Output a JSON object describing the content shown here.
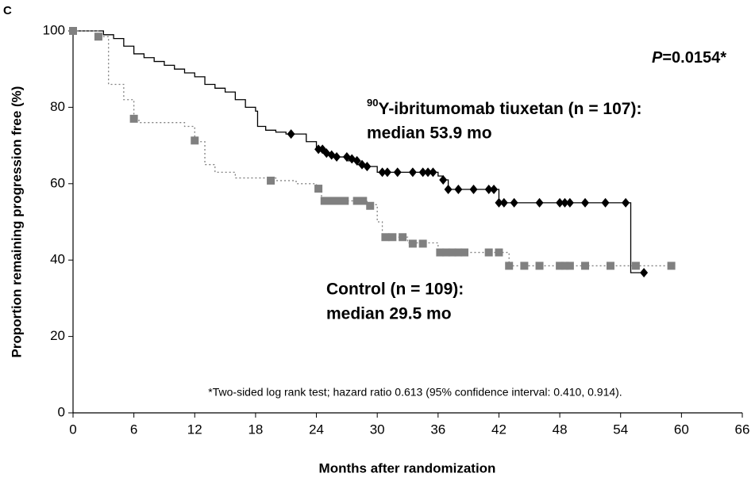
{
  "chart_data": {
    "type": "km",
    "panel": "C",
    "xlabel": "Months after randomization",
    "ylabel": "Proportion remaining progression free (%)",
    "xlim": [
      0,
      66
    ],
    "xticks": [
      0,
      6,
      12,
      18,
      24,
      30,
      36,
      42,
      48,
      54,
      60,
      66
    ],
    "ylim": [
      0,
      100
    ],
    "yticks": [
      0,
      20,
      40,
      60,
      80,
      100
    ],
    "pvalue": {
      "italic": "P",
      "text": "=0.0154*"
    },
    "footnote": "*Two-sided log rank test; hazard ratio 0.613 (95% confidence interval: 0.410, 0.914).",
    "series": [
      {
        "label": {
          "sup": "90",
          "line1": "Y-ibritumomab tiuxetan (n = 107):",
          "line2": "median 53.9 mo"
        },
        "color": "#000000",
        "marker": "diamond",
        "dash": "",
        "x": [
          0,
          3,
          4,
          5,
          6,
          7,
          8,
          9,
          10,
          11,
          12,
          13,
          14,
          15,
          16,
          17,
          18,
          18.2,
          19,
          20,
          21,
          23,
          24,
          25,
          25.5,
          27,
          28,
          29,
          30,
          36,
          36.5,
          37,
          42,
          55,
          56
        ],
        "values": [
          100,
          99,
          98,
          96,
          94,
          93,
          92,
          91,
          90,
          89,
          88,
          86,
          85,
          84,
          82,
          80,
          79,
          75,
          74,
          73.5,
          73,
          71,
          69,
          68,
          67,
          66,
          65,
          64.5,
          63,
          62,
          61,
          58.5,
          55,
          36.7,
          36.7
        ],
        "censor_x": [
          21.5,
          24.2,
          24.6,
          25,
          25.5,
          26,
          27,
          27.5,
          28,
          28.5,
          29,
          30.5,
          31,
          32,
          33.5,
          34.5,
          35,
          35.5,
          36.5,
          37,
          38,
          39.5,
          41,
          41.5,
          42,
          42.5,
          43.5,
          46,
          48,
          48.5,
          49,
          50.5,
          52.5,
          54.5,
          56.3
        ],
        "censor_values": [
          73,
          69,
          69,
          68,
          67.5,
          67,
          67,
          66.5,
          66,
          65,
          64.5,
          63,
          63,
          63,
          63,
          63,
          63,
          63,
          61,
          58.5,
          58.5,
          58.5,
          58.5,
          58.5,
          55,
          55,
          55,
          55,
          55,
          55,
          55,
          55,
          55,
          55,
          36.7
        ]
      },
      {
        "label": {
          "line1": "Control (n = 109):",
          "line2": "median 29.5 mo"
        },
        "color": "#808080",
        "marker": "square",
        "dash": "2,3",
        "x": [
          0,
          2.5,
          3.5,
          5,
          6,
          6.5,
          11,
          12,
          13,
          14,
          16,
          20,
          22,
          24,
          24.5,
          29,
          30,
          30.5,
          33,
          36,
          43,
          59
        ],
        "values": [
          100,
          98.5,
          86,
          82,
          77,
          76,
          75,
          71,
          65,
          63,
          61.5,
          60.8,
          60,
          58.5,
          55.5,
          54.5,
          50,
          46,
          44.5,
          42,
          38.5,
          38.5
        ],
        "censor_x": [
          0,
          2.5,
          6,
          12,
          19.5,
          24.2,
          24.8,
          25.3,
          25.8,
          26.3,
          26.8,
          28,
          28.6,
          29.3,
          30.8,
          31.5,
          32.5,
          33.5,
          34.5,
          36.2,
          36.8,
          37.4,
          38,
          38.6,
          41,
          42,
          43,
          44.5,
          46,
          48,
          48.5,
          49,
          50.5,
          53,
          55.5,
          59
        ],
        "censor_values": [
          100,
          98.5,
          77,
          71.3,
          60.8,
          58.7,
          55.5,
          55.5,
          55.5,
          55.5,
          55.5,
          55.5,
          55.5,
          54.2,
          46,
          46,
          46,
          44.3,
          44.3,
          42,
          42,
          42,
          42,
          42,
          42,
          42,
          38.5,
          38.5,
          38.5,
          38.5,
          38.5,
          38.5,
          38.5,
          38.5,
          38.5,
          38.5
        ]
      }
    ]
  }
}
